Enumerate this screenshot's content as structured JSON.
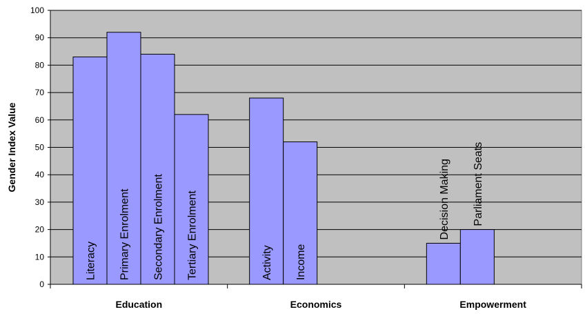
{
  "chart_data": {
    "type": "bar",
    "title": "",
    "xlabel": "",
    "ylabel": "Gender Index Value",
    "ylim": [
      0,
      100
    ],
    "yticks": [
      0,
      10,
      20,
      30,
      40,
      50,
      60,
      70,
      80,
      90,
      100
    ],
    "grid": true,
    "legend": "none",
    "colors": {
      "plot_background": "#c0c0c0",
      "bar_fill": "#9999ff",
      "bar_stroke": "#000000",
      "gridline": "#000000"
    },
    "groups": [
      {
        "name": "Education",
        "bars": [
          {
            "label": "Literacy",
            "value": 83
          },
          {
            "label": "Primary Enrolment",
            "value": 92
          },
          {
            "label": "Secondary Enrolment",
            "value": 84
          },
          {
            "label": "Tertiary Enrolment",
            "value": 62
          }
        ]
      },
      {
        "name": "Economics",
        "bars": [
          {
            "label": "Activity",
            "value": 68
          },
          {
            "label": "Income",
            "value": 52
          }
        ]
      },
      {
        "name": "Empowerment",
        "bars": [
          {
            "label": "Decision Making",
            "value": 15
          },
          {
            "label": "Parliament Seats",
            "value": 20
          }
        ]
      }
    ]
  }
}
